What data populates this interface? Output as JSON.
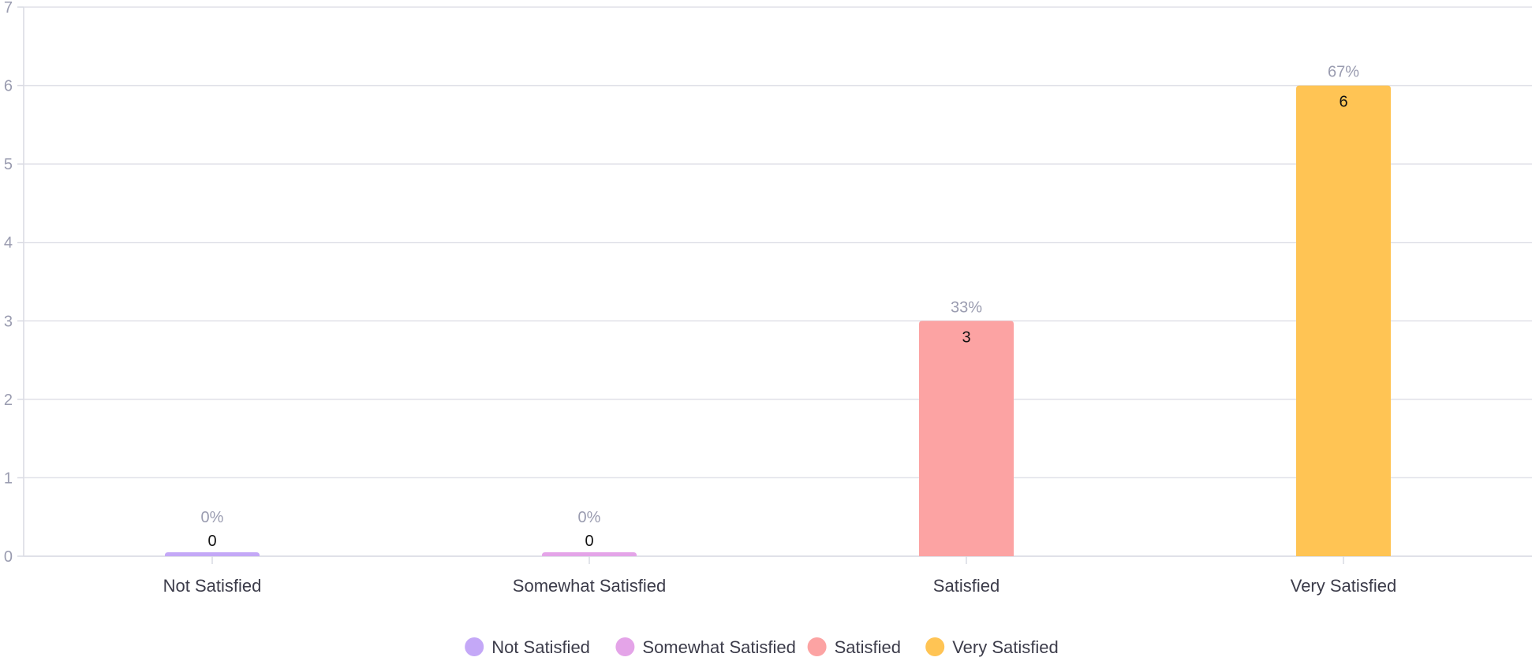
{
  "chart_data": {
    "type": "bar",
    "categories": [
      "Not Satisfied",
      "Somewhat Satisfied",
      "Satisfied",
      "Very Satisfied"
    ],
    "values": [
      0,
      0,
      3,
      6
    ],
    "percent_labels": [
      "0%",
      "0%",
      "33%",
      "67%"
    ],
    "value_labels": [
      "0",
      "0",
      "3",
      "6"
    ],
    "colors": [
      "#c4a8f7",
      "#e4a4e8",
      "#fca3a3",
      "#ffc454"
    ],
    "ylim": [
      0,
      7
    ],
    "yticks": [
      "0",
      "1",
      "2",
      "3",
      "4",
      "5",
      "6",
      "7"
    ],
    "grid": true,
    "legend": {
      "position": "bottom-center",
      "items": [
        {
          "label": "Not Satisfied",
          "color": "#c4a8f7"
        },
        {
          "label": "Somewhat Satisfied",
          "color": "#e4a4e8"
        },
        {
          "label": "Satisfied",
          "color": "#fca3a3"
        },
        {
          "label": "Very Satisfied",
          "color": "#ffc454"
        }
      ]
    }
  }
}
